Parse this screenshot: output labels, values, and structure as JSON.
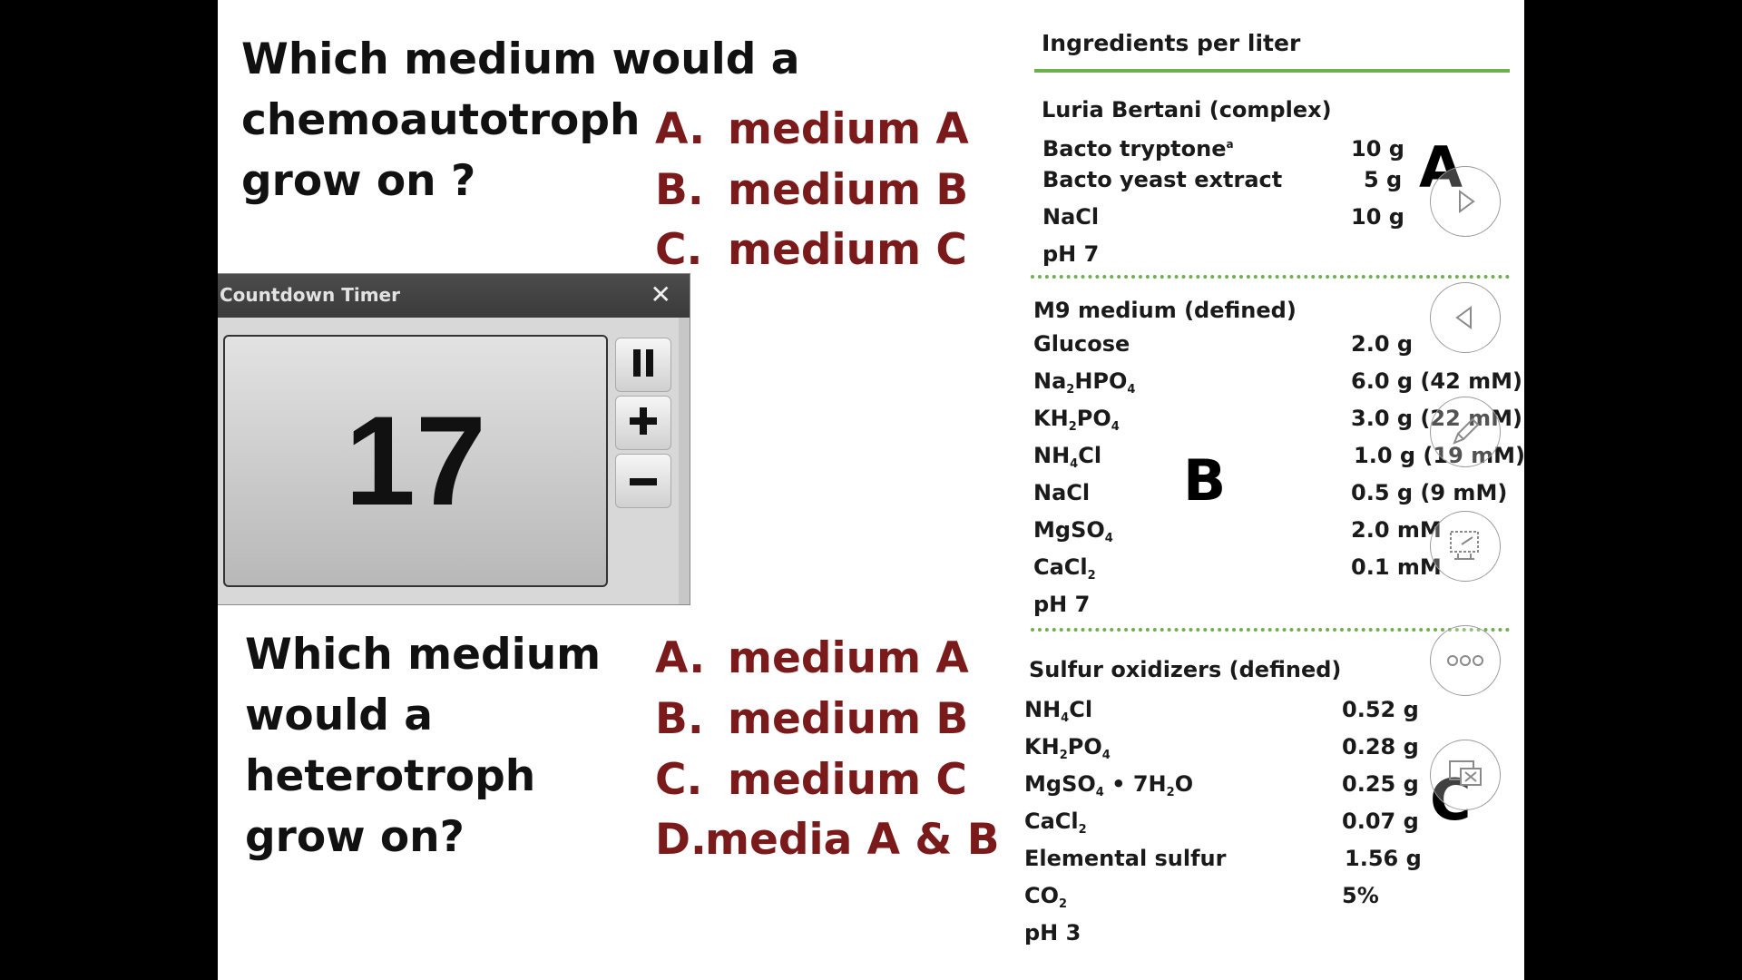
{
  "question1": {
    "lines": [
      "Which medium would a",
      "chemoautotroph",
      "grow on ?"
    ],
    "answers": [
      {
        "letter": "A.",
        "text": "medium A"
      },
      {
        "letter": "B.",
        "text": "medium B"
      },
      {
        "letter": "C.",
        "text": "medium C"
      }
    ]
  },
  "question2": {
    "lines": [
      "Which medium",
      "would a",
      "heterotroph",
      "grow on?"
    ],
    "answers": [
      {
        "letter": "A.",
        "text": "medium A"
      },
      {
        "letter": "B.",
        "text": "medium B"
      },
      {
        "letter": "C.",
        "text": "medium C"
      },
      {
        "letter": "D.",
        "text": "media A & B"
      }
    ]
  },
  "timer": {
    "title": "Countdown Timer",
    "close_glyph": "✕",
    "value": "17",
    "icons": [
      "pause-icon",
      "plus-icon",
      "minus-icon"
    ]
  },
  "panel": {
    "header": "Ingredients per liter",
    "section_letters": {
      "a": "A",
      "b": "B",
      "c": "C"
    },
    "luria": {
      "title": "Luria Bertani (complex)",
      "rows": [
        {
          "name": "Bacto tryptone",
          "sup": "a",
          "amount": "10 g"
        },
        {
          "name": "Bacto yeast extract",
          "amount": "5 g"
        },
        {
          "name": "NaCl",
          "amount": "10 g"
        }
      ],
      "ph": "pH 7"
    },
    "m9": {
      "title": "M9 medium (defined)",
      "rows": [
        {
          "amount": "2.0 g"
        },
        {
          "amount": "6.0 g (42 mM)"
        },
        {
          "amount": "3.0 g (22 mM)"
        },
        {
          "amount": "1.0 g (19 mM)"
        },
        {
          "amount": "0.5 g (9 mM)"
        },
        {
          "amount": "2.0 mM"
        },
        {
          "amount": "0.1 mM"
        }
      ],
      "ph": "pH 7"
    },
    "sulfur": {
      "title": "Sulfur oxidizers (defined)",
      "rows": [
        {
          "amount": "0.52 g"
        },
        {
          "amount": "0.28 g"
        },
        {
          "amount": "0.25 g"
        },
        {
          "amount": "0.07 g"
        },
        {
          "amount": "1.56 g"
        },
        {
          "amount": "5%"
        }
      ],
      "ph": "pH 3"
    }
  },
  "slideshow_controls": [
    "next-icon",
    "previous-icon",
    "pen-icon",
    "screen-icon",
    "more-options-icon",
    "end-show-icon"
  ],
  "colors": {
    "answer": "#7b1a1a",
    "rule": "#6fb04e",
    "timer_bar": "#3f3f3f"
  }
}
